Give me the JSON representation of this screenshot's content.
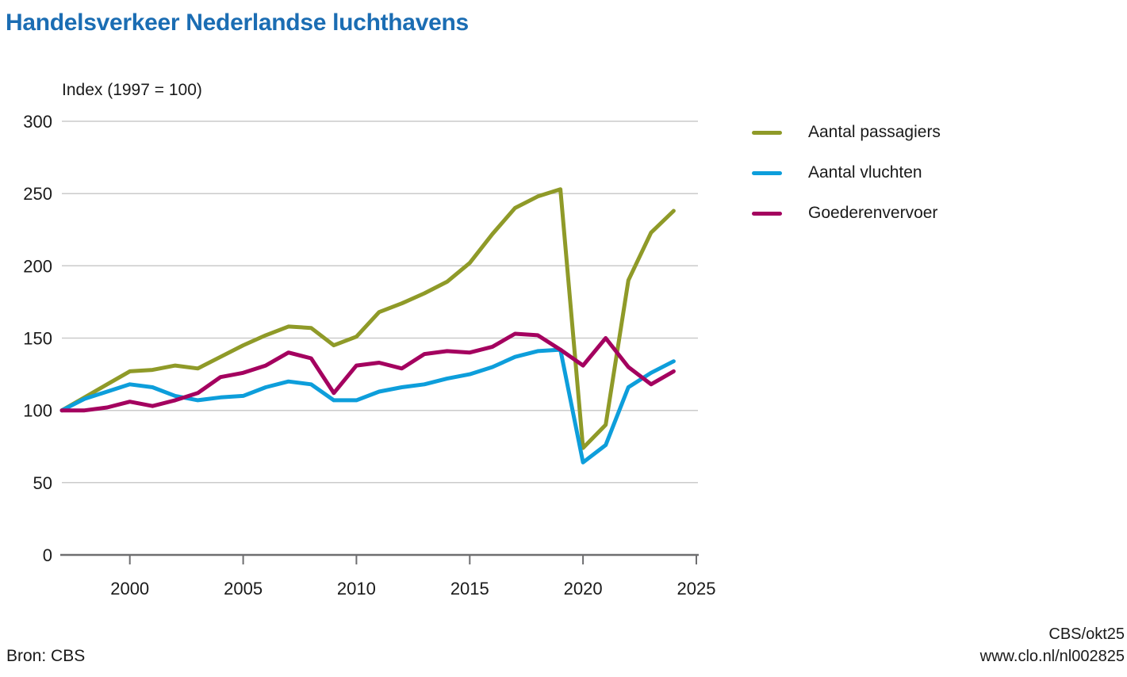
{
  "header": {
    "title": "Handelsverkeer Nederlandse luchthavens"
  },
  "footer": {
    "source": "Bron: CBS",
    "credit_line1": "CBS/okt25",
    "credit_line2": "www.clo.nl/nl002825"
  },
  "colors": {
    "title": "#1b6db3",
    "axis": "#6e6e70",
    "gridline": "#cbcbcb",
    "text": "#1a1a1a",
    "passagiers": "#8f9a28",
    "vluchten": "#0d9edb",
    "goederenvervoer": "#a4015f"
  },
  "chart_data": {
    "type": "line",
    "title": "Handelsverkeer Nederlandse luchthavens",
    "ylabel": "Index (1997 = 100)",
    "xlabel": "",
    "ylim": [
      0,
      300
    ],
    "xlim": [
      1997,
      2025
    ],
    "yticks": [
      0,
      50,
      100,
      150,
      200,
      250,
      300
    ],
    "xticks": [
      2000,
      2005,
      2010,
      2015,
      2020,
      2025
    ],
    "grid": true,
    "legend_position": "right",
    "x": [
      1997,
      1998,
      1999,
      2000,
      2001,
      2002,
      2003,
      2004,
      2005,
      2006,
      2007,
      2008,
      2009,
      2010,
      2011,
      2012,
      2013,
      2014,
      2015,
      2016,
      2017,
      2018,
      2019,
      2020,
      2021,
      2022,
      2023,
      2024
    ],
    "series": [
      {
        "id": "aantal-passagiers",
        "name": "Aantal passagiers",
        "color": "#8f9a28",
        "values": [
          100,
          109,
          118,
          127,
          128,
          131,
          129,
          137,
          145,
          152,
          158,
          157,
          145,
          151,
          168,
          174,
          181,
          189,
          202,
          222,
          240,
          248,
          253,
          74,
          90,
          190,
          223,
          238
        ]
      },
      {
        "id": "aantal-vluchten",
        "name": "Aantal vluchten",
        "color": "#0d9edb",
        "values": [
          100,
          108,
          113,
          118,
          116,
          110,
          107,
          109,
          110,
          116,
          120,
          118,
          107,
          107,
          113,
          116,
          118,
          122,
          125,
          130,
          137,
          141,
          142,
          64,
          76,
          116,
          126,
          134
        ]
      },
      {
        "id": "goederenvervoer",
        "name": "Goederenvervoer",
        "color": "#a4015f",
        "values": [
          100,
          100,
          102,
          106,
          103,
          107,
          112,
          123,
          126,
          131,
          140,
          136,
          112,
          131,
          133,
          129,
          139,
          141,
          140,
          144,
          153,
          152,
          142,
          131,
          150,
          130,
          118,
          127
        ]
      }
    ]
  }
}
